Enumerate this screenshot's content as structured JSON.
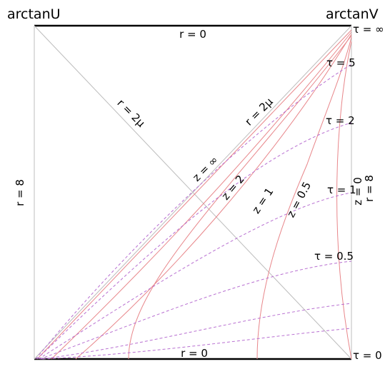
{
  "axes": {
    "left_top": "arctanU",
    "right_top": "arctanV"
  },
  "labels": {
    "r_top": "r = 0",
    "r_bottom": "r = 0",
    "r_left": "r = 8",
    "r_right": "r = 8",
    "z_right": "z = 0",
    "r_diag_main": "r = 2μ",
    "r_diag_upper": "r = 2μ",
    "z_inf": "z = ∞",
    "z_2": "z = 2",
    "z_1": "z = 1",
    "z_05": "z = 0.5",
    "tau_inf": "τ = ∞",
    "tau_5": "τ = 5",
    "tau_2": "τ = 2",
    "tau_1": "τ = 1",
    "tau_05": "τ = 0.5",
    "tau_0": "τ = 0"
  },
  "colors": {
    "frame": "#000000",
    "diagonal": "#bdbdbd",
    "z_curves": "#e8868a",
    "tau_curves": "#b86fd1",
    "text": "#000000"
  }
}
